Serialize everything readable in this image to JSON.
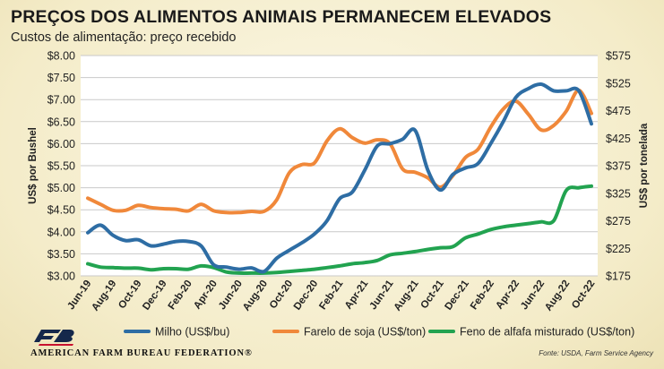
{
  "header": {
    "title": "PREÇOS DOS ALIMENTOS ANIMAIS PERMANECEM ELEVADOS",
    "subtitle": "Custos de alimentação: preço recebido"
  },
  "footer": {
    "org_name": "AMERICAN FARM BUREAU FEDERATION®",
    "source": "Fonte: USDA, Farm Service Agency",
    "logo_icon": "fb-logo-icon"
  },
  "colors": {
    "milho": "#2e6da4",
    "farelo": "#f0883a",
    "feno": "#22a350",
    "grid": "#c9c9c9",
    "plot_bg": "#ffffff"
  },
  "chart_data": {
    "type": "line",
    "title": "PREÇOS DOS ALIMENTOS ANIMAIS PERMANECEM ELEVADOS",
    "subtitle": "Custos de alimentação: preço recebido",
    "ylabel_left": "US$ por Bushel",
    "ylabel_right": "US$ por tonelada",
    "ylim_left": [
      3.0,
      8.0
    ],
    "ylim_right": [
      175,
      575
    ],
    "yticks_left": [
      "$3.00",
      "$3.50",
      "$4.00",
      "$4.50",
      "$5.00",
      "$5.50",
      "$6.00",
      "$6.50",
      "$7.00",
      "$7.50",
      "$8.00"
    ],
    "yticks_right": [
      "$175",
      "$225",
      "$275",
      "$325",
      "$375",
      "$425",
      "$475",
      "$525",
      "$575"
    ],
    "x": [
      "Jun-19",
      "Jul-19",
      "Aug-19",
      "Sep-19",
      "Oct-19",
      "Nov-19",
      "Dec-19",
      "Jan-20",
      "Feb-20",
      "Mar-20",
      "Apr-20",
      "May-20",
      "Jun-20",
      "Jul-20",
      "Aug-20",
      "Sep-20",
      "Oct-20",
      "Nov-20",
      "Dec-20",
      "Jan-21",
      "Feb-21",
      "Mar-21",
      "Apr-21",
      "May-21",
      "Jun-21",
      "Jul-21",
      "Aug-21",
      "Sep-21",
      "Oct-21",
      "Nov-21",
      "Dec-21",
      "Jan-22",
      "Feb-22",
      "Mar-22",
      "Apr-22",
      "May-22",
      "Jun-22",
      "Jul-22",
      "Aug-22",
      "Sep-22",
      "Oct-22"
    ],
    "xtick_labels": [
      "Jun-19",
      "Aug-19",
      "Oct-19",
      "Dec-19",
      "Feb-20",
      "Apr-20",
      "Jun-20",
      "Aug-20",
      "Oct-20",
      "Dec-20",
      "Feb-21",
      "Apr-21",
      "Jun-21",
      "Aug-21",
      "Oct-21",
      "Dec-21",
      "Feb-22",
      "Apr-22",
      "Jun-22",
      "Aug-22",
      "Oct-22"
    ],
    "grid": true,
    "legend_position": "bottom",
    "series": [
      {
        "name": "Milho (US$/bu)",
        "axis": "left",
        "color": "#2e6da4",
        "values": [
          3.98,
          4.15,
          3.92,
          3.8,
          3.82,
          3.68,
          3.72,
          3.78,
          3.78,
          3.68,
          3.25,
          3.2,
          3.15,
          3.18,
          3.1,
          3.4,
          3.58,
          3.75,
          3.95,
          4.25,
          4.75,
          4.9,
          5.4,
          5.95,
          6.0,
          6.1,
          6.3,
          5.4,
          4.95,
          5.3,
          5.45,
          5.55,
          6.0,
          6.5,
          7.05,
          7.25,
          7.35,
          7.2,
          7.2,
          7.2,
          6.45
        ]
      },
      {
        "name": "Farelo de soja (US$/ton)",
        "axis": "right",
        "color": "#f0883a",
        "values": [
          316,
          305,
          294,
          294,
          303,
          299,
          297,
          296,
          293,
          305,
          293,
          290,
          290,
          292,
          292,
          313,
          362,
          377,
          380,
          420,
          442,
          426,
          416,
          422,
          415,
          369,
          363,
          353,
          336,
          357,
          390,
          405,
          445,
          478,
          492,
          468,
          440,
          448,
          474,
          512,
          470
        ]
      },
      {
        "name": "Feno de alfafa misturado (US$/ton)",
        "axis": "right",
        "color": "#22a350",
        "values": [
          197,
          191,
          190,
          189,
          189,
          186,
          188,
          188,
          187,
          193,
          190,
          182,
          180,
          180,
          180,
          181,
          183,
          185,
          187,
          190,
          193,
          197,
          199,
          203,
          213,
          216,
          219,
          223,
          226,
          228,
          244,
          251,
          259,
          264,
          267,
          270,
          273,
          275,
          330,
          335,
          338
        ]
      }
    ]
  }
}
